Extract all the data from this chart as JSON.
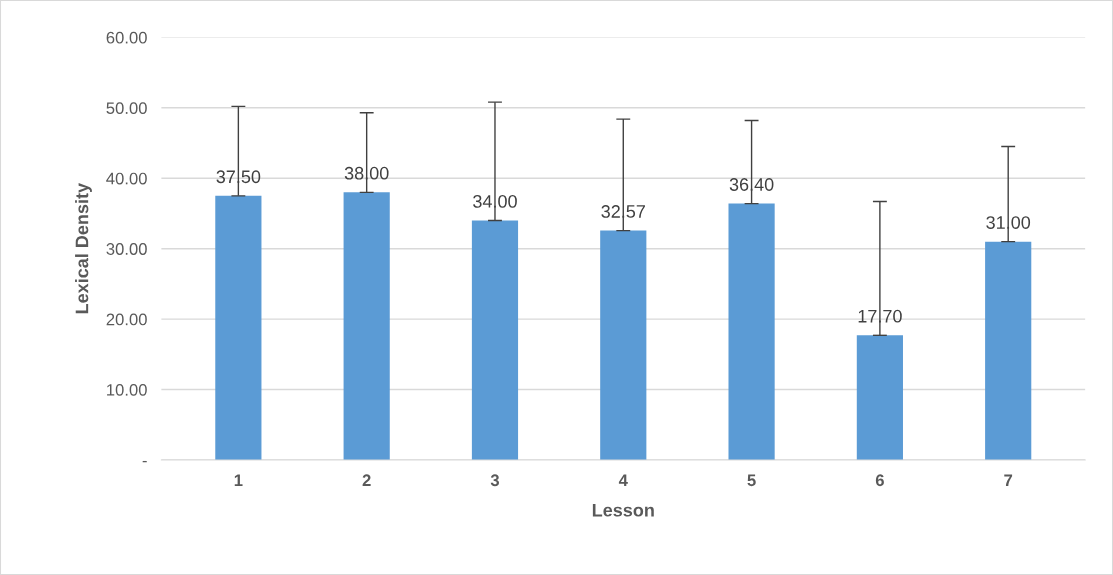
{
  "chart_data": {
    "type": "bar",
    "xlabel": "Lesson",
    "ylabel": "Lexical Density",
    "categories": [
      "1",
      "2",
      "3",
      "4",
      "5",
      "6",
      "7"
    ],
    "values": [
      37.5,
      38.0,
      34.0,
      32.57,
      36.4,
      17.7,
      31.0
    ],
    "value_labels": [
      "37.50",
      "38.00",
      "34.00",
      "32.57",
      "36.40",
      "17.70",
      "31.00"
    ],
    "errors": [
      [
        37.5,
        50.2
      ],
      [
        38.0,
        49.3
      ],
      [
        34.0,
        50.8
      ],
      [
        32.57,
        48.4
      ],
      [
        36.4,
        48.2
      ],
      [
        17.7,
        36.7
      ],
      [
        31.0,
        44.5
      ]
    ],
    "color": "#5b9bd5",
    "ylim": [
      0,
      60
    ],
    "yticks": [
      {
        "value": 0,
        "label": "-"
      },
      {
        "value": 10,
        "label": "10.00"
      },
      {
        "value": 20,
        "label": "20.00"
      },
      {
        "value": 30,
        "label": "30.00"
      },
      {
        "value": 40,
        "label": "40.00"
      },
      {
        "value": 50,
        "label": "50.00"
      },
      {
        "value": 60,
        "label": "60.00"
      }
    ],
    "grid": "y"
  }
}
